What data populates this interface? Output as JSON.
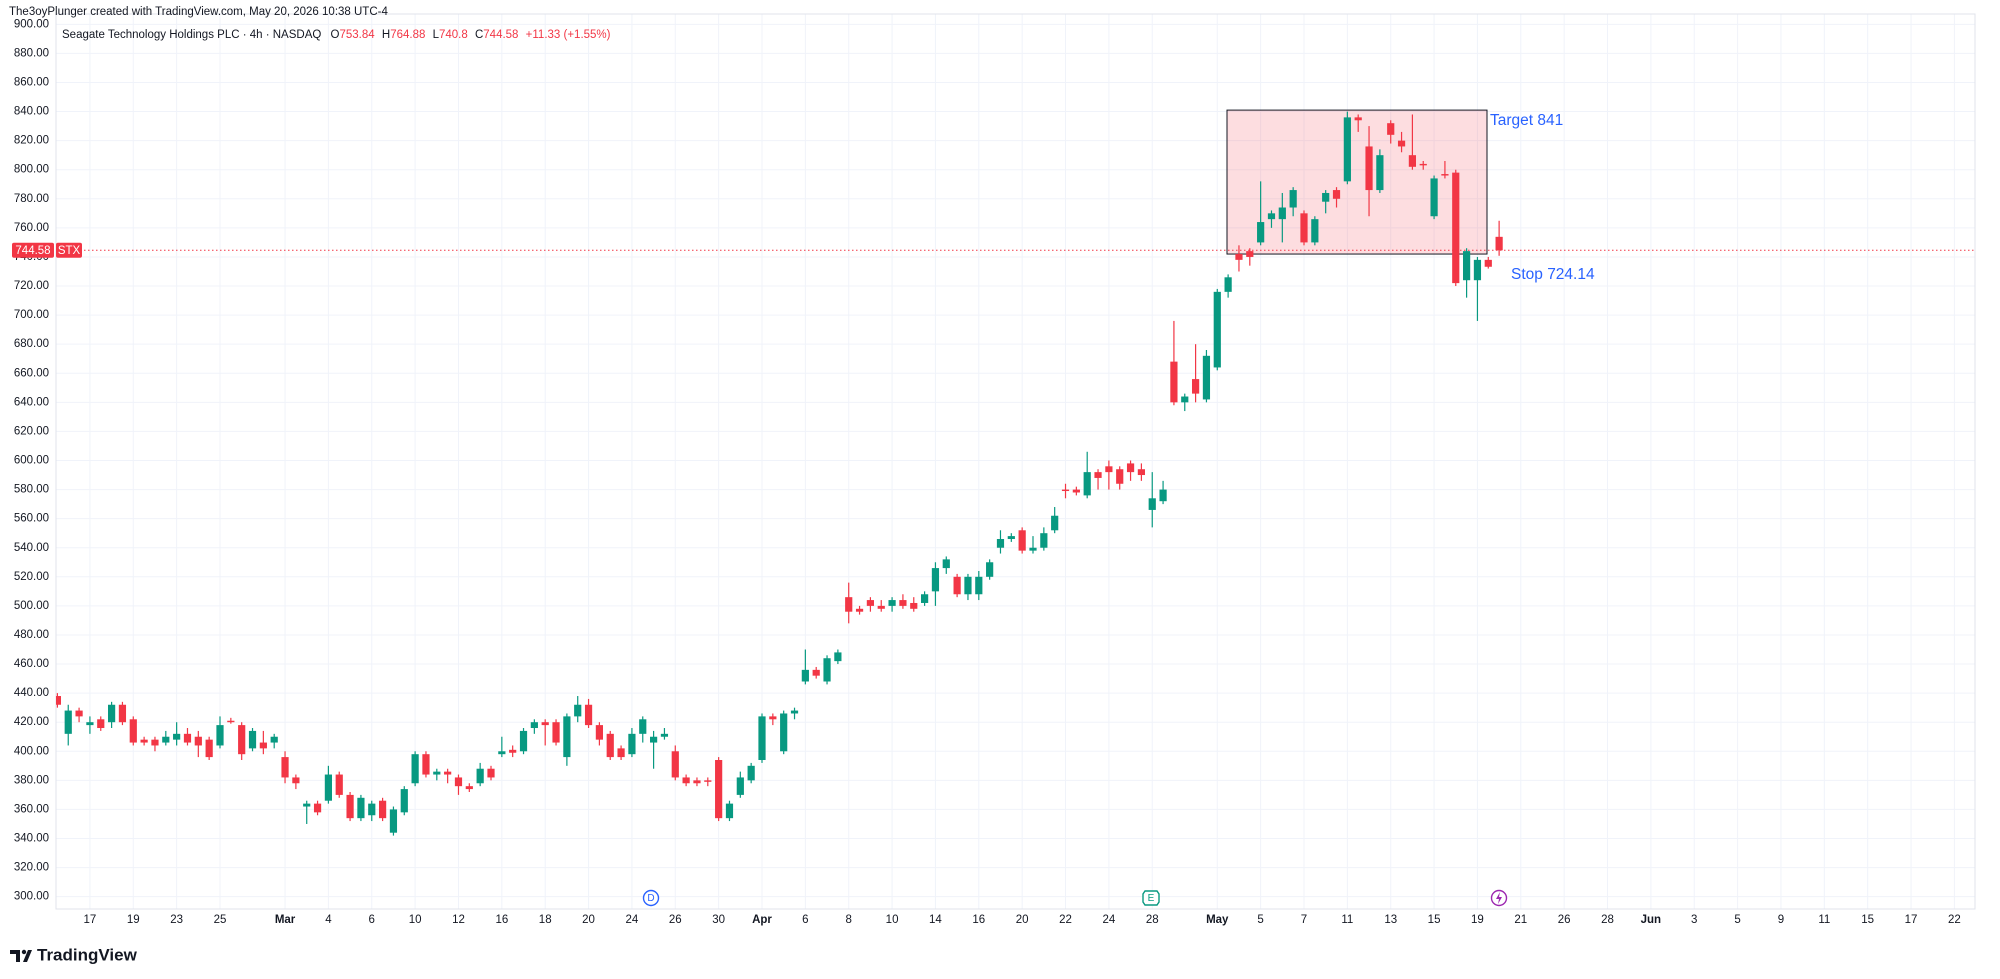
{
  "header": {
    "credit": "The3oyPlunger created with TradingView.com, May 20, 2026 10:38 UTC-4"
  },
  "chart_data": {
    "type": "candlestick",
    "title": "Seagate Technology Holdings PLC · 4h · NASDAQ",
    "symbol": "STX",
    "ohlc_prefixes": [
      "O",
      "H",
      "L",
      "C"
    ],
    "change_label": "+11.33 (+1.55%)",
    "categories": [
      null,
      null,
      null,
      "17",
      null,
      null,
      null,
      "19",
      null,
      null,
      null,
      "23",
      null,
      null,
      null,
      "25",
      null,
      null,
      null,
      null,
      null,
      "Mar",
      null,
      null,
      null,
      "4",
      null,
      null,
      null,
      "6",
      null,
      null,
      null,
      "10",
      null,
      null,
      null,
      "12",
      null,
      null,
      null,
      "16",
      null,
      null,
      null,
      "18",
      null,
      null,
      null,
      "20",
      null,
      null,
      null,
      "24",
      null,
      null,
      null,
      "26",
      null,
      null,
      null,
      "30",
      null,
      null,
      null,
      "Apr",
      null,
      null,
      null,
      "6",
      null,
      null,
      null,
      "8",
      null,
      null,
      null,
      "10",
      null,
      null,
      null,
      "14",
      null,
      null,
      null,
      "16",
      null,
      null,
      null,
      "20",
      null,
      null,
      null,
      "22",
      null,
      null,
      null,
      "24",
      null,
      null,
      null,
      "28",
      null,
      null,
      null,
      null,
      null,
      "May",
      null,
      null,
      null,
      "5",
      null,
      null,
      null,
      "7",
      null,
      null,
      null,
      "11",
      null,
      null,
      null,
      "13",
      null,
      null,
      null,
      "15",
      null,
      null,
      null,
      "19",
      null,
      null,
      null,
      "21",
      null,
      null,
      null,
      "26",
      null,
      null,
      null,
      "28",
      null,
      null,
      null,
      "Jun",
      null,
      null,
      null,
      "3",
      null,
      null,
      null,
      "5",
      null,
      null,
      null,
      "9",
      null,
      null,
      null,
      "11",
      null,
      null,
      null,
      "15",
      null,
      null,
      null,
      "17",
      null,
      null,
      null,
      "22",
      null
    ],
    "open": [
      438,
      412,
      428,
      418,
      422,
      420,
      432,
      422,
      408,
      408,
      406,
      408,
      412,
      410,
      408,
      404,
      421,
      418,
      402,
      406,
      406,
      396,
      382,
      362,
      364,
      366,
      384,
      370,
      354,
      356,
      366,
      344,
      358,
      378,
      398,
      384,
      386,
      382,
      376,
      378,
      388,
      398,
      401,
      400,
      416,
      420,
      420,
      396,
      424,
      432,
      418,
      412,
      402,
      398,
      412,
      406,
      410,
      400,
      382,
      380,
      380,
      394,
      354,
      370,
      380,
      394,
      424,
      400,
      426,
      448,
      456,
      448,
      462,
      506,
      498,
      504,
      500,
      500,
      504,
      502,
      502,
      510,
      526,
      520,
      508,
      508,
      520,
      540,
      546,
      552,
      538,
      540,
      552,
      580,
      580,
      576,
      592,
      596,
      594,
      598,
      594,
      566,
      572,
      668,
      640,
      656,
      642,
      664,
      716,
      742,
      744,
      750,
      766,
      766,
      774,
      770,
      750,
      778,
      786,
      792,
      836,
      816,
      786,
      832,
      820,
      810,
      804,
      768,
      797,
      798,
      724,
      724,
      738,
      753.84,
      null,
      null,
      null,
      null,
      null,
      null,
      null,
      null,
      null,
      null,
      null,
      null,
      null,
      null,
      null,
      null,
      null,
      null,
      null,
      null,
      null,
      null,
      null,
      null,
      null,
      null,
      null,
      null,
      null,
      null,
      null,
      null,
      null,
      null,
      null,
      null,
      null,
      null,
      null,
      null,
      null,
      null,
      null
    ],
    "high": [
      440,
      432,
      430,
      424,
      424,
      434,
      434,
      424,
      410,
      410,
      414,
      420,
      416,
      414,
      410,
      424,
      423,
      420,
      416,
      414,
      412,
      400,
      384,
      366,
      366,
      390,
      386,
      372,
      370,
      366,
      368,
      362,
      376,
      400,
      400,
      388,
      388,
      384,
      378,
      392,
      390,
      410,
      404,
      416,
      422,
      422,
      422,
      426,
      438,
      436,
      420,
      414,
      404,
      416,
      424,
      414,
      416,
      404,
      384,
      382,
      382,
      396,
      366,
      386,
      392,
      426,
      426,
      428,
      430,
      470,
      458,
      466,
      470,
      516,
      500,
      506,
      504,
      506,
      508,
      506,
      510,
      530,
      534,
      522,
      522,
      524,
      532,
      552,
      550,
      554,
      548,
      554,
      568,
      584,
      582,
      606,
      594,
      600,
      596,
      600,
      598,
      592,
      586,
      696,
      646,
      680,
      676,
      718,
      728,
      748,
      746,
      792,
      772,
      784,
      788,
      772,
      768,
      786,
      788,
      840,
      838,
      830,
      814,
      834,
      826,
      838,
      806,
      796,
      806,
      800,
      746,
      740,
      740,
      764.88,
      null,
      null,
      null,
      null,
      null,
      null,
      null,
      null,
      null,
      null,
      null,
      null,
      null,
      null,
      null,
      null,
      null,
      null,
      null,
      null,
      null,
      null,
      null,
      null,
      null,
      null,
      null,
      null,
      null,
      null,
      null,
      null,
      null,
      null,
      null,
      null,
      null,
      null,
      null,
      null,
      null,
      null,
      null
    ],
    "low": [
      430,
      404,
      420,
      412,
      414,
      416,
      418,
      404,
      404,
      400,
      404,
      404,
      404,
      396,
      394,
      402,
      419,
      394,
      400,
      398,
      402,
      378,
      374,
      350,
      356,
      364,
      368,
      352,
      352,
      352,
      352,
      342,
      356,
      376,
      382,
      380,
      378,
      370,
      372,
      376,
      380,
      396,
      396,
      398,
      412,
      404,
      404,
      390,
      420,
      416,
      404,
      394,
      394,
      396,
      406,
      388,
      408,
      380,
      376,
      376,
      376,
      352,
      352,
      368,
      378,
      392,
      418,
      398,
      422,
      446,
      450,
      446,
      460,
      488,
      494,
      496,
      496,
      496,
      498,
      496,
      500,
      500,
      522,
      506,
      504,
      504,
      518,
      536,
      544,
      536,
      536,
      538,
      550,
      574,
      576,
      574,
      580,
      580,
      580,
      586,
      586,
      554,
      570,
      638,
      634,
      640,
      640,
      662,
      712,
      730,
      734,
      748,
      760,
      750,
      768,
      748,
      748,
      770,
      774,
      790,
      826,
      768,
      784,
      818,
      812,
      800,
      800,
      766,
      794,
      720,
      712,
      696,
      732,
      740.8,
      null,
      null,
      null,
      null,
      null,
      null,
      null,
      null,
      null,
      null,
      null,
      null,
      null,
      null,
      null,
      null,
      null,
      null,
      null,
      null,
      null,
      null,
      null,
      null,
      null,
      null,
      null,
      null,
      null,
      null,
      null,
      null,
      null,
      null,
      null,
      null,
      null,
      null,
      null,
      null,
      null,
      null,
      null
    ],
    "close": [
      432,
      428,
      424,
      420,
      416,
      432,
      420,
      406,
      406,
      404,
      410,
      412,
      406,
      404,
      396,
      418,
      420,
      398,
      414,
      402,
      410,
      382,
      378,
      364,
      358,
      384,
      370,
      354,
      368,
      364,
      354,
      360,
      374,
      398,
      384,
      386,
      384,
      376,
      374,
      388,
      382,
      400,
      399,
      414,
      420,
      418,
      406,
      424,
      432,
      418,
      408,
      396,
      396,
      412,
      422,
      410,
      412,
      382,
      378,
      378,
      379,
      354,
      364,
      382,
      390,
      424,
      422,
      426,
      428,
      456,
      452,
      464,
      468,
      496,
      496,
      500,
      498,
      504,
      500,
      498,
      508,
      526,
      532,
      508,
      520,
      520,
      530,
      546,
      548,
      538,
      540,
      550,
      562,
      579,
      578,
      592,
      588,
      592,
      584,
      592,
      590,
      574,
      580,
      640,
      644,
      646,
      672,
      716,
      726,
      738,
      740,
      764,
      770,
      774,
      786,
      750,
      766,
      784,
      780,
      836,
      834,
      786,
      810,
      824,
      816,
      802,
      803,
      794,
      796,
      722,
      744,
      738,
      733.25,
      744.58,
      null,
      null,
      null,
      null,
      null,
      null,
      null,
      null,
      null,
      null,
      null,
      null,
      null,
      null,
      null,
      null,
      null,
      null,
      null,
      null,
      null,
      null,
      null,
      null,
      null,
      null,
      null,
      null,
      null,
      null,
      null,
      null,
      null,
      null,
      null,
      null,
      null,
      null,
      null,
      null,
      null,
      null,
      null
    ],
    "up_color": "#089981",
    "down_color": "#f23645",
    "ylim": [
      292,
      906
    ],
    "yticks": [
      {
        "value": 300,
        "label": "300.00"
      },
      {
        "value": 320,
        "label": "320.00"
      },
      {
        "value": 340,
        "label": "340.00"
      },
      {
        "value": 360,
        "label": "360.00"
      },
      {
        "value": 380,
        "label": "380.00"
      },
      {
        "value": 400,
        "label": "400.00"
      },
      {
        "value": 420,
        "label": "420.00"
      },
      {
        "value": 440,
        "label": "440.00"
      },
      {
        "value": 460,
        "label": "460.00"
      },
      {
        "value": 480,
        "label": "480.00"
      },
      {
        "value": 500,
        "label": "500.00"
      },
      {
        "value": 520,
        "label": "520.00"
      },
      {
        "value": 540,
        "label": "540.00"
      },
      {
        "value": 560,
        "label": "560.00"
      },
      {
        "value": 580,
        "label": "580.00"
      },
      {
        "value": 600,
        "label": "600.00"
      },
      {
        "value": 620,
        "label": "620.00"
      },
      {
        "value": 640,
        "label": "640.00"
      },
      {
        "value": 660,
        "label": "660.00"
      },
      {
        "value": 680,
        "label": "680.00"
      },
      {
        "value": 700,
        "label": "700.00"
      },
      {
        "value": 720,
        "label": "720.00"
      },
      {
        "value": 740,
        "label": "740.00"
      },
      {
        "value": 760,
        "label": "760.00"
      },
      {
        "value": 780,
        "label": "780.00"
      },
      {
        "value": 800,
        "label": "800.00"
      },
      {
        "value": 820,
        "label": "820.00"
      },
      {
        "value": 840,
        "label": "840.00"
      },
      {
        "value": 860,
        "label": "860.00"
      },
      {
        "value": 880,
        "label": "880.00"
      },
      {
        "value": 900,
        "label": "900.00"
      }
    ],
    "grid": true,
    "box": {
      "top": 841,
      "bottom": 742,
      "label": "Target 841"
    },
    "stop": {
      "value": 724.14,
      "label": "Stop 724.14"
    },
    "events": [
      "D",
      "E"
    ]
  },
  "footer": {
    "brand": "TradingView"
  }
}
